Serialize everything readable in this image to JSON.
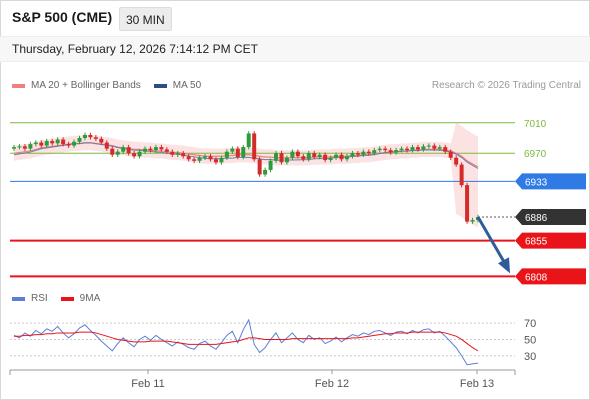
{
  "header": {
    "symbol": "S&P 500 (CME)",
    "timeframe": "30 MIN",
    "datetime": "Thursday, February 12, 2026 7:14:12 PM CET"
  },
  "legend": {
    "ma20_label": "MA 20 + Bollinger Bands",
    "ma50_label": "MA 50",
    "credit": "Research © 2026 Trading Central"
  },
  "rsi_legend": {
    "rsi_label": "RSI",
    "ma_label": "9MA"
  },
  "colors": {
    "ma20": "#f08080",
    "ma50": "#2c4d8a",
    "resistance": "#7cb940",
    "pivot": "#2f7ae5",
    "support": "#e8141a",
    "last": "#333333",
    "candle_up": "#2e9b3a",
    "candle_down": "#d42a2a",
    "rsi": "#5b7fd8",
    "rsi_ma": "#e8141a"
  },
  "chart_data": [
    {
      "type": "candlestick",
      "title": "S&P 500 (CME) 30 MIN",
      "x_ticks": [
        "Feb 11",
        "Feb 12",
        "Feb 13"
      ],
      "ylim": [
        6790,
        7040
      ],
      "levels": [
        {
          "value": 7010,
          "label": "7010",
          "kind": "resistance"
        },
        {
          "value": 6970,
          "label": "6970",
          "kind": "resistance"
        },
        {
          "value": 6933,
          "label": "6933",
          "kind": "pivot"
        },
        {
          "value": 6886,
          "label": "6886",
          "kind": "last"
        },
        {
          "value": 6855,
          "label": "6855",
          "kind": "support"
        },
        {
          "value": 6808,
          "label": "6808",
          "kind": "support"
        }
      ],
      "closes": [
        6978,
        6979,
        6976,
        6982,
        6984,
        6980,
        6986,
        6983,
        6988,
        6982,
        6980,
        6985,
        6990,
        6994,
        6991,
        6989,
        6984,
        6976,
        6968,
        6972,
        6978,
        6970,
        6966,
        6972,
        6976,
        6974,
        6978,
        6975,
        6972,
        6968,
        6970,
        6966,
        6962,
        6960,
        6964,
        6966,
        6962,
        6958,
        6964,
        6972,
        6976,
        6965,
        6978,
        6996,
        6962,
        6942,
        6948,
        6960,
        6970,
        6958,
        6964,
        6972,
        6966,
        6962,
        6970,
        6965,
        6968,
        6961,
        6964,
        6968,
        6962,
        6966,
        6970,
        6968,
        6972,
        6970,
        6974,
        6976,
        6974,
        6971,
        6974,
        6976,
        6974,
        6978,
        6975,
        6979,
        6980,
        6976,
        6978,
        6972,
        6964,
        6955,
        6928,
        6880,
        6882,
        6886
      ],
      "ma20": [
        6970,
        6971,
        6972,
        6973,
        6975,
        6977,
        6978,
        6979,
        6980,
        6981,
        6982,
        6983,
        6983,
        6984,
        6984,
        6983,
        6982,
        6981,
        6980,
        6978,
        6977,
        6976,
        6975,
        6975,
        6974,
        6974,
        6973,
        6973,
        6972,
        6971,
        6971,
        6970,
        6969,
        6968,
        6967,
        6966,
        6966,
        6966,
        6966,
        6967,
        6967,
        6968,
        6968,
        6968,
        6967,
        6966,
        6965,
        6965,
        6964,
        6964,
        6964,
        6964,
        6964,
        6964,
        6964,
        6965,
        6965,
        6965,
        6965,
        6966,
        6966,
        6966,
        6967,
        6967,
        6968,
        6968,
        6969,
        6970,
        6971,
        6972,
        6972,
        6973,
        6973,
        6974,
        6974,
        6975,
        6975,
        6975,
        6975,
        6974,
        6973,
        6970,
        6966,
        6960,
        6956,
        6952
      ],
      "rsi_ticks": [
        70,
        50,
        30
      ],
      "rsi": [
        55,
        52,
        58,
        54,
        61,
        57,
        63,
        60,
        66,
        58,
        52,
        57,
        64,
        68,
        61,
        55,
        48,
        42,
        36,
        45,
        52,
        46,
        41,
        50,
        54,
        49,
        55,
        50,
        46,
        42,
        47,
        44,
        40,
        38,
        45,
        48,
        42,
        38,
        46,
        55,
        60,
        46,
        62,
        74,
        44,
        34,
        40,
        50,
        58,
        46,
        52,
        58,
        50,
        46,
        55,
        50,
        52,
        45,
        48,
        53,
        47,
        52,
        56,
        54,
        58,
        56,
        60,
        61,
        58,
        55,
        59,
        60,
        57,
        61,
        58,
        62,
        63,
        58,
        60,
        54,
        47,
        40,
        30,
        19,
        20,
        21
      ],
      "rsi_ma": [
        54,
        54,
        55,
        55,
        56,
        56,
        57,
        57,
        58,
        58,
        58,
        58,
        59,
        59,
        59,
        58,
        56,
        54,
        52,
        50,
        49,
        48,
        47,
        47,
        47,
        48,
        48,
        48,
        48,
        47,
        46,
        45,
        44,
        44,
        44,
        44,
        44,
        44,
        45,
        46,
        47,
        48,
        50,
        52,
        52,
        51,
        50,
        50,
        50,
        50,
        50,
        51,
        51,
        51,
        51,
        51,
        51,
        51,
        51,
        51,
        51,
        51,
        52,
        52,
        53,
        54,
        55,
        56,
        57,
        57,
        58,
        58,
        58,
        59,
        59,
        59,
        59,
        59,
        59,
        58,
        56,
        54,
        50,
        45,
        40,
        36
      ]
    }
  ]
}
